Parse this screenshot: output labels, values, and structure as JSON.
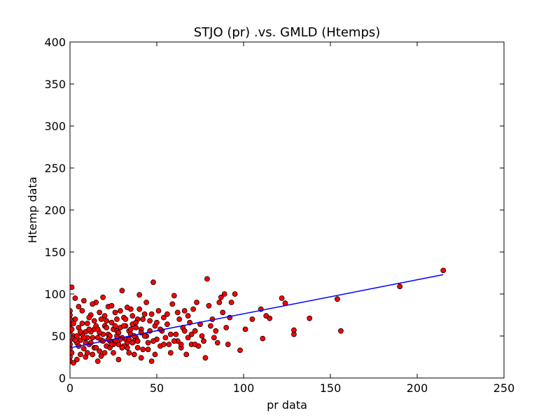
{
  "chart_data": {
    "type": "scatter",
    "title": "STJO (pr) .vs. GMLD (Htemps)",
    "xlabel": "pr data",
    "ylabel": "Htemp data",
    "xlim": [
      0,
      250
    ],
    "ylim": [
      0,
      400
    ],
    "xticks": [
      0,
      50,
      100,
      150,
      200,
      250
    ],
    "yticks": [
      0,
      50,
      100,
      150,
      200,
      250,
      300,
      350,
      400
    ],
    "grid": false,
    "legend": "none",
    "marker_color": "#ff0000",
    "marker_edge": "#000000",
    "line_color": "#0000ff",
    "fit_line": {
      "x": [
        0,
        215
      ],
      "y": [
        36,
        123
      ]
    },
    "points": [
      [
        1,
        108
      ],
      [
        2,
        50
      ],
      [
        1,
        30
      ],
      [
        3,
        70
      ],
      [
        4,
        22
      ],
      [
        5,
        60
      ],
      [
        6,
        45
      ],
      [
        7,
        80
      ],
      [
        8,
        35
      ],
      [
        9,
        55
      ],
      [
        10,
        65
      ],
      [
        11,
        40
      ],
      [
        12,
        75
      ],
      [
        13,
        28
      ],
      [
        14,
        58
      ],
      [
        15,
        90
      ],
      [
        16,
        48
      ],
      [
        17,
        32
      ],
      [
        18,
        70
      ],
      [
        19,
        52
      ],
      [
        20,
        62
      ],
      [
        21,
        38
      ],
      [
        22,
        85
      ],
      [
        23,
        44
      ],
      [
        24,
        66
      ],
      [
        25,
        30
      ],
      [
        26,
        78
      ],
      [
        27,
        50
      ],
      [
        28,
        40
      ],
      [
        29,
        60
      ],
      [
        30,
        104
      ],
      [
        31,
        72
      ],
      [
        32,
        46
      ],
      [
        33,
        36
      ],
      [
        34,
        56
      ],
      [
        35,
        82
      ],
      [
        36,
        64
      ],
      [
        37,
        28
      ],
      [
        38,
        48
      ],
      [
        39,
        70
      ],
      [
        40,
        99
      ],
      [
        41,
        58
      ],
      [
        42,
        34
      ],
      [
        43,
        76
      ],
      [
        44,
        50
      ],
      [
        45,
        42
      ],
      [
        46,
        68
      ],
      [
        47,
        20
      ],
      [
        48,
        114
      ],
      [
        49,
        62
      ],
      [
        50,
        46
      ],
      [
        51,
        80
      ],
      [
        52,
        38
      ],
      [
        53,
        56
      ],
      [
        54,
        72
      ],
      [
        55,
        48
      ],
      [
        56,
        64
      ],
      [
        57,
        40
      ],
      [
        58,
        30
      ],
      [
        59,
        88
      ],
      [
        60,
        98
      ],
      [
        61,
        52
      ],
      [
        62,
        44
      ],
      [
        63,
        70
      ],
      [
        64,
        36
      ],
      [
        65,
        60
      ],
      [
        66,
        80
      ],
      [
        67,
        28
      ],
      [
        68,
        48
      ],
      [
        69,
        66
      ],
      [
        70,
        40
      ],
      [
        71,
        82
      ],
      [
        72,
        56
      ],
      [
        73,
        90
      ],
      [
        74,
        38
      ],
      [
        75,
        64
      ],
      [
        76,
        50
      ],
      [
        77,
        44
      ],
      [
        78,
        24
      ],
      [
        79,
        118
      ],
      [
        80,
        86
      ],
      [
        81,
        62
      ],
      [
        82,
        70
      ],
      [
        83,
        48
      ],
      [
        84,
        56
      ],
      [
        85,
        42
      ],
      [
        86,
        90
      ],
      [
        87,
        96
      ],
      [
        88,
        78
      ],
      [
        89,
        100
      ],
      [
        90,
        60
      ],
      [
        91,
        40
      ],
      [
        92,
        72
      ],
      [
        93,
        90
      ],
      [
        95,
        100
      ],
      [
        98,
        33
      ],
      [
        101,
        58
      ],
      [
        105,
        70
      ],
      [
        110,
        82
      ],
      [
        111,
        47
      ],
      [
        113,
        74
      ],
      [
        115,
        71
      ],
      [
        122,
        95
      ],
      [
        124,
        89
      ],
      [
        129,
        52
      ],
      [
        129,
        57
      ],
      [
        138,
        71
      ],
      [
        154,
        94
      ],
      [
        156,
        56
      ],
      [
        190,
        109
      ],
      [
        215,
        128
      ],
      [
        0,
        20
      ],
      [
        0,
        25
      ],
      [
        0,
        35
      ],
      [
        0,
        40
      ],
      [
        0,
        45
      ],
      [
        0,
        55
      ],
      [
        0,
        60
      ],
      [
        0,
        65
      ],
      [
        0,
        70
      ],
      [
        0,
        75
      ],
      [
        0,
        80
      ],
      [
        2,
        18
      ],
      [
        3,
        95
      ],
      [
        4,
        42
      ],
      [
        5,
        85
      ],
      [
        6,
        28
      ],
      [
        7,
        65
      ],
      [
        8,
        92
      ],
      [
        9,
        25
      ],
      [
        10,
        48
      ],
      [
        11,
        72
      ],
      [
        12,
        55
      ],
      [
        13,
        88
      ],
      [
        14,
        36
      ],
      [
        15,
        62
      ],
      [
        16,
        20
      ],
      [
        17,
        78
      ],
      [
        18,
        45
      ],
      [
        19,
        96
      ],
      [
        20,
        30
      ],
      [
        21,
        68
      ],
      [
        22,
        52
      ],
      [
        23,
        36
      ],
      [
        24,
        86
      ],
      [
        25,
        58
      ],
      [
        26,
        44
      ],
      [
        27,
        70
      ],
      [
        28,
        22
      ],
      [
        29,
        80
      ],
      [
        30,
        48
      ],
      [
        31,
        38
      ],
      [
        32,
        62
      ],
      [
        33,
        84
      ],
      [
        34,
        30
      ],
      [
        35,
        52
      ],
      [
        36,
        74
      ],
      [
        37,
        44
      ],
      [
        38,
        60
      ],
      [
        39,
        36
      ],
      [
        40,
        82
      ],
      [
        41,
        24
      ],
      [
        42,
        70
      ],
      [
        43,
        50
      ],
      [
        44,
        90
      ],
      [
        45,
        34
      ],
      [
        46,
        56
      ],
      [
        47,
        76
      ],
      [
        48,
        44
      ],
      [
        49,
        28
      ],
      [
        50,
        66
      ],
      [
        52,
        58
      ],
      [
        54,
        40
      ],
      [
        56,
        76
      ],
      [
        58,
        52
      ],
      [
        60,
        44
      ],
      [
        62,
        78
      ],
      [
        64,
        40
      ],
      [
        66,
        56
      ],
      [
        68,
        74
      ],
      [
        70,
        52
      ],
      [
        72,
        40
      ],
      [
        3,
        45
      ],
      [
        5,
        38
      ],
      [
        7,
        52
      ],
      [
        9,
        42
      ],
      [
        11,
        58
      ],
      [
        13,
        48
      ],
      [
        15,
        36
      ],
      [
        17,
        54
      ],
      [
        19,
        44
      ],
      [
        21,
        60
      ],
      [
        23,
        50
      ],
      [
        25,
        40
      ],
      [
        27,
        56
      ],
      [
        29,
        46
      ],
      [
        31,
        62
      ],
      [
        33,
        42
      ],
      [
        35,
        58
      ],
      [
        37,
        50
      ],
      [
        39,
        44
      ],
      [
        41,
        54
      ],
      [
        1,
        58
      ],
      [
        2,
        65
      ],
      [
        4,
        50
      ],
      [
        6,
        55
      ],
      [
        8,
        48
      ],
      [
        10,
        30
      ],
      [
        12,
        42
      ],
      [
        14,
        68
      ],
      [
        16,
        58
      ],
      [
        18,
        26
      ],
      [
        20,
        74
      ],
      [
        22,
        46
      ],
      [
        24,
        40
      ],
      [
        26,
        62
      ],
      [
        28,
        54
      ],
      [
        30,
        36
      ],
      [
        32,
        70
      ],
      [
        34,
        46
      ],
      [
        36,
        42
      ],
      [
        38,
        66
      ]
    ]
  }
}
